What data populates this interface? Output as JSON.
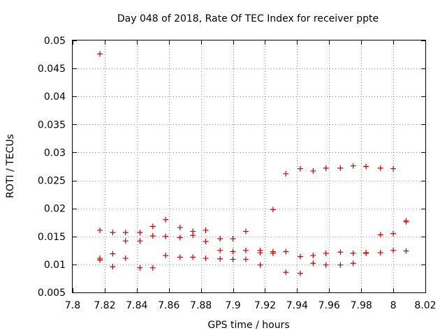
{
  "chart_data": {
    "type": "scatter",
    "title": "Day 048 of 2018, Rate Of TEC Index for receiver ppte",
    "xlabel": "GPS time / hours",
    "ylabel": "ROTI / TECUs",
    "xlim": [
      7.8,
      8.02
    ],
    "ylim": [
      0.005,
      0.05
    ],
    "grid": true,
    "marker": "+",
    "color": "#cc0000",
    "x_ticks": [
      7.8,
      7.82,
      7.84,
      7.86,
      7.88,
      7.9,
      7.92,
      7.94,
      7.96,
      7.98,
      8.0,
      8.02
    ],
    "x_tick_labels": [
      "7.8",
      "7.82",
      "7.84",
      "7.86",
      "7.88",
      "7.9",
      "7.92",
      "7.94",
      "7.96",
      "7.98",
      "8",
      "8.02"
    ],
    "y_ticks": [
      0.005,
      0.01,
      0.015,
      0.02,
      0.025,
      0.03,
      0.035,
      0.04,
      0.045,
      0.05
    ],
    "y_tick_labels": [
      "0.005",
      "0.01",
      "0.015",
      "0.02",
      "0.025",
      "0.03",
      "0.035",
      "0.04",
      "0.045",
      "0.05"
    ],
    "points": [
      [
        7.817,
        0.0476
      ],
      [
        7.817,
        0.0161
      ],
      [
        7.817,
        0.0111
      ],
      [
        7.817,
        0.0108
      ],
      [
        7.825,
        0.0157
      ],
      [
        7.825,
        0.0119
      ],
      [
        7.825,
        0.0096
      ],
      [
        7.833,
        0.0157
      ],
      [
        7.833,
        0.0142
      ],
      [
        7.833,
        0.0111
      ],
      [
        7.842,
        0.0157
      ],
      [
        7.842,
        0.0142
      ],
      [
        7.842,
        0.0094
      ],
      [
        7.85,
        0.0168
      ],
      [
        7.85,
        0.0151
      ],
      [
        7.85,
        0.0094
      ],
      [
        7.858,
        0.018
      ],
      [
        7.858,
        0.015
      ],
      [
        7.858,
        0.0116
      ],
      [
        7.867,
        0.0166
      ],
      [
        7.867,
        0.0148
      ],
      [
        7.867,
        0.0113
      ],
      [
        7.875,
        0.0159
      ],
      [
        7.875,
        0.0152
      ],
      [
        7.875,
        0.0113
      ],
      [
        7.883,
        0.0161
      ],
      [
        7.883,
        0.0141
      ],
      [
        7.883,
        0.0111
      ],
      [
        7.892,
        0.0146
      ],
      [
        7.892,
        0.0125
      ],
      [
        7.892,
        0.011
      ],
      [
        7.9,
        0.0146
      ],
      [
        7.9,
        0.0123
      ],
      [
        7.9,
        0.0109
      ],
      [
        7.908,
        0.0159
      ],
      [
        7.908,
        0.0125
      ],
      [
        7.908,
        0.0109
      ],
      [
        7.917,
        0.0125
      ],
      [
        7.917,
        0.0121
      ],
      [
        7.917,
        0.0099
      ],
      [
        7.925,
        0.0198
      ],
      [
        7.925,
        0.0123
      ],
      [
        7.925,
        0.012
      ],
      [
        7.933,
        0.0262
      ],
      [
        7.933,
        0.0123
      ],
      [
        7.933,
        0.0086
      ],
      [
        7.942,
        0.0271
      ],
      [
        7.942,
        0.0114
      ],
      [
        7.942,
        0.0084
      ],
      [
        7.95,
        0.0267
      ],
      [
        7.95,
        0.0116
      ],
      [
        7.95,
        0.0102
      ],
      [
        7.958,
        0.0272
      ],
      [
        7.958,
        0.012
      ],
      [
        7.958,
        0.0099
      ],
      [
        7.967,
        0.0272
      ],
      [
        7.967,
        0.0122
      ],
      [
        7.967,
        0.0099
      ],
      [
        7.975,
        0.0276
      ],
      [
        7.975,
        0.012
      ],
      [
        7.975,
        0.0102
      ],
      [
        7.983,
        0.0275
      ],
      [
        7.983,
        0.0121
      ],
      [
        7.983,
        0.012
      ],
      [
        7.992,
        0.0272
      ],
      [
        7.992,
        0.0153
      ],
      [
        7.992,
        0.0121
      ],
      [
        8.0,
        0.0271
      ],
      [
        8.0,
        0.0155
      ],
      [
        8.0,
        0.0125
      ],
      [
        8.008,
        0.0178
      ],
      [
        8.008,
        0.0176
      ],
      [
        8.008,
        0.0124
      ]
    ]
  }
}
